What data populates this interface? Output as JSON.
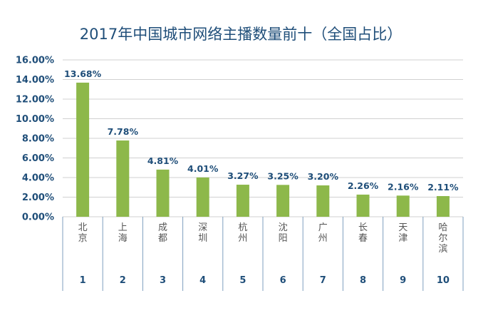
{
  "chart_data": {
    "type": "bar",
    "title": "2017年中国城市网络主播数量前十（全国占比）",
    "categories": [
      "北京",
      "上海",
      "成都",
      "深圳",
      "杭州",
      "沈阳",
      "广州",
      "长春",
      "天津",
      "哈尔滨"
    ],
    "ranks": [
      "1",
      "2",
      "3",
      "4",
      "5",
      "6",
      "7",
      "8",
      "9",
      "10"
    ],
    "values": [
      13.68,
      7.78,
      4.81,
      4.01,
      3.27,
      3.25,
      3.2,
      2.26,
      2.16,
      2.11
    ],
    "data_labels": [
      "13.68%",
      "7.78%",
      "4.81%",
      "4.01%",
      "3.27%",
      "3.25%",
      "3.20%",
      "2.26%",
      "2.16%",
      "2.11%"
    ],
    "y_ticks": [
      "0.00%",
      "2.00%",
      "4.00%",
      "6.00%",
      "8.00%",
      "10.00%",
      "12.00%",
      "14.00%",
      "16.00%"
    ],
    "ylim": [
      0,
      16
    ],
    "grid": true,
    "legend": "none",
    "bar_color": "#8db84a",
    "text_color": "#1f4e79",
    "grid_color": "#d0d0d0",
    "table_border_color": "#7f9fbf"
  }
}
